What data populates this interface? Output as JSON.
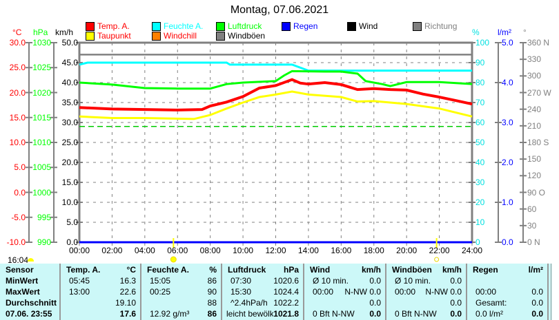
{
  "title": "Montag, 07.06.2021",
  "legend": [
    {
      "label": "Temp. A.",
      "color": "#ff0000",
      "text_color": "#ff0000"
    },
    {
      "label": "Taupunkt",
      "color": "#ffff00",
      "text_color": "#ff0000"
    },
    {
      "label": "Feuchte A.",
      "color": "#00ffff",
      "text_color": "#00ffff"
    },
    {
      "label": "Windchill",
      "color": "#ff8000",
      "text_color": "#ff0000"
    },
    {
      "label": "Luftdruck",
      "color": "#00ff00",
      "text_color": "#00ff00"
    },
    {
      "label": "Windböen",
      "color": "#808080",
      "text_color": "#000000"
    },
    {
      "label": "Regen",
      "color": "#0000ff",
      "text_color": "#0000ff"
    },
    {
      "label": "Wind",
      "color": "#000000",
      "text_color": "#000000"
    },
    {
      "label": "Richtung",
      "color": "#808080",
      "text_color": "#808080"
    }
  ],
  "axes": {
    "temp": {
      "unit": "°C",
      "ticks": [
        "30.0",
        "25.0",
        "20.0",
        "15.0",
        "10.0",
        "5.0",
        "0.0",
        "-5.0",
        "-10.0"
      ],
      "color": "#ff0000"
    },
    "pressure": {
      "unit": "hPa",
      "ticks": [
        "1030",
        "1025",
        "1020",
        "1015",
        "1010",
        "1005",
        "1000",
        "995",
        "990"
      ],
      "color": "#00ff00"
    },
    "wind": {
      "unit": "km/h",
      "ticks": [
        "50.0",
        "45.0",
        "40.0",
        "35.0",
        "30.0",
        "25.0",
        "20.0",
        "15.0",
        "10.0",
        "5.0",
        "0.0"
      ],
      "color": "#000000"
    },
    "humidity": {
      "unit": "%",
      "ticks": [
        "100",
        "90",
        "80",
        "70",
        "60",
        "50",
        "40",
        "30",
        "20",
        "10",
        "0"
      ],
      "color": "#00e0e0"
    },
    "rain": {
      "unit": "l/m²",
      "ticks": [
        "5.0",
        "4.0",
        "3.0",
        "2.0",
        "1.0",
        "0.0"
      ],
      "color": "#0000ff"
    },
    "direction": {
      "unit": "°",
      "ticks": [
        "360 N",
        "330",
        "300",
        "270 W",
        "240",
        "210",
        "180 S",
        "150",
        "120",
        "90  O",
        "60",
        "30",
        "0    N"
      ],
      "color": "#808080"
    },
    "time": [
      "00:00",
      "02:00",
      "04:00",
      "06:00",
      "08:00",
      "10:00",
      "12:00",
      "14:00",
      "16:00",
      "18:00",
      "20:00",
      "22:00",
      "24:00"
    ]
  },
  "chart_data": {
    "type": "line",
    "xlim": [
      0,
      24
    ],
    "series": [
      {
        "name": "Temp. A.",
        "axis": "temp",
        "color": "#ff0000",
        "x": [
          0,
          2,
          4,
          6,
          7.5,
          8,
          9,
          10,
          11,
          12,
          13,
          13.5,
          14,
          15,
          16,
          17,
          18,
          19,
          20,
          21,
          22,
          23,
          24
        ],
        "y": [
          17.0,
          16.7,
          16.6,
          16.5,
          16.6,
          17.3,
          18.1,
          19.2,
          20.9,
          21.4,
          22.6,
          21.9,
          21.7,
          22.0,
          21.6,
          20.6,
          20.8,
          20.6,
          20.5,
          19.7,
          19.1,
          18.4,
          17.7
        ]
      },
      {
        "name": "Taupunkt",
        "axis": "temp",
        "color": "#ffff00",
        "x": [
          0,
          2,
          4,
          7,
          8,
          9,
          10,
          11,
          12,
          13,
          14,
          16,
          17,
          18,
          20,
          22,
          24
        ],
        "y": [
          15.2,
          14.9,
          14.9,
          14.7,
          15.5,
          16.8,
          18.0,
          19.1,
          19.6,
          20.2,
          19.6,
          19.1,
          18.2,
          18.3,
          17.7,
          16.8,
          15.2
        ]
      },
      {
        "name": "Feuchte A.",
        "axis": "humidity",
        "color": "#00ffff",
        "x": [
          0,
          0.5,
          9,
          9.2,
          13,
          14,
          24
        ],
        "y": [
          89,
          90,
          90,
          89,
          89,
          86,
          86
        ]
      },
      {
        "name": "Luftdruck",
        "axis": "pressure",
        "color": "#00ff00",
        "x": [
          0,
          2,
          4,
          6,
          8,
          9,
          10,
          12,
          12.5,
          13,
          15,
          16,
          17,
          17.5,
          18.5,
          19,
          20,
          22,
          24
        ],
        "y": [
          1022.0,
          1021.6,
          1020.9,
          1020.8,
          1020.8,
          1021.7,
          1022.0,
          1022.3,
          1023.4,
          1024.3,
          1024.2,
          1024.2,
          1023.8,
          1022.3,
          1021.7,
          1021.3,
          1022.1,
          1022.1,
          1021.7
        ]
      },
      {
        "name": "Regen",
        "axis": "rain",
        "color": "#0000ff",
        "x": [
          0,
          24
        ],
        "y": [
          0,
          0
        ]
      }
    ],
    "reference_lines": [
      {
        "axis": "pressure",
        "value": 1013.2,
        "color": "#00cc00",
        "style": "dashed"
      },
      {
        "axis": "wind",
        "value": 47,
        "color": "#808080",
        "style": "solid"
      }
    ],
    "sunrise": "05:45",
    "sunset": "21:50"
  },
  "clock": "16:04",
  "table": {
    "headers": [
      [
        "Sensor",
        ""
      ],
      [
        "Temp. A.",
        "°C"
      ],
      [
        "Feuchte A.",
        "%"
      ],
      [
        "Luftdruck",
        "hPa"
      ],
      [
        "Wind",
        "km/h"
      ],
      [
        "Windböen",
        "km/h"
      ],
      [
        "Regen",
        "l/m²"
      ]
    ],
    "row_labels": [
      "MinWert",
      "MaxWert",
      "Durchschnitt",
      "07.06. 23:55"
    ],
    "cols": [
      [
        [
          "05:45",
          "16.3"
        ],
        [
          "13:00",
          "22.6"
        ],
        [
          "",
          "19.10"
        ],
        [
          "",
          "17.6"
        ]
      ],
      [
        [
          "15:05",
          "86"
        ],
        [
          "00:25",
          "90"
        ],
        [
          "",
          "88"
        ],
        [
          "12.92 g/m³",
          "86"
        ]
      ],
      [
        [
          "07:30",
          "1020.6"
        ],
        [
          "15:30",
          "1024.4"
        ],
        [
          "^2.4hPa/h",
          "1022.2"
        ],
        [
          "leicht bewölkt",
          "1021.8"
        ]
      ],
      [
        [
          "Ø 10 min.",
          "0.0"
        ],
        [
          "00:00",
          "N-NW 0.0"
        ],
        [
          "",
          "0.0"
        ],
        [
          "0 Bft N-NW",
          "0.0"
        ]
      ],
      [
        [
          "Ø 10 min.",
          "0.0"
        ],
        [
          "00:00",
          "N-NW 0.0"
        ],
        [
          "",
          "0.0"
        ],
        [
          "0 Bft N-NW",
          "0.0"
        ]
      ],
      [
        [
          "",
          ""
        ],
        [
          "00:00",
          "0.0"
        ],
        [
          "Gesamt:",
          "0.0"
        ],
        [
          "0.0 l/m²",
          "0.0"
        ]
      ]
    ]
  }
}
